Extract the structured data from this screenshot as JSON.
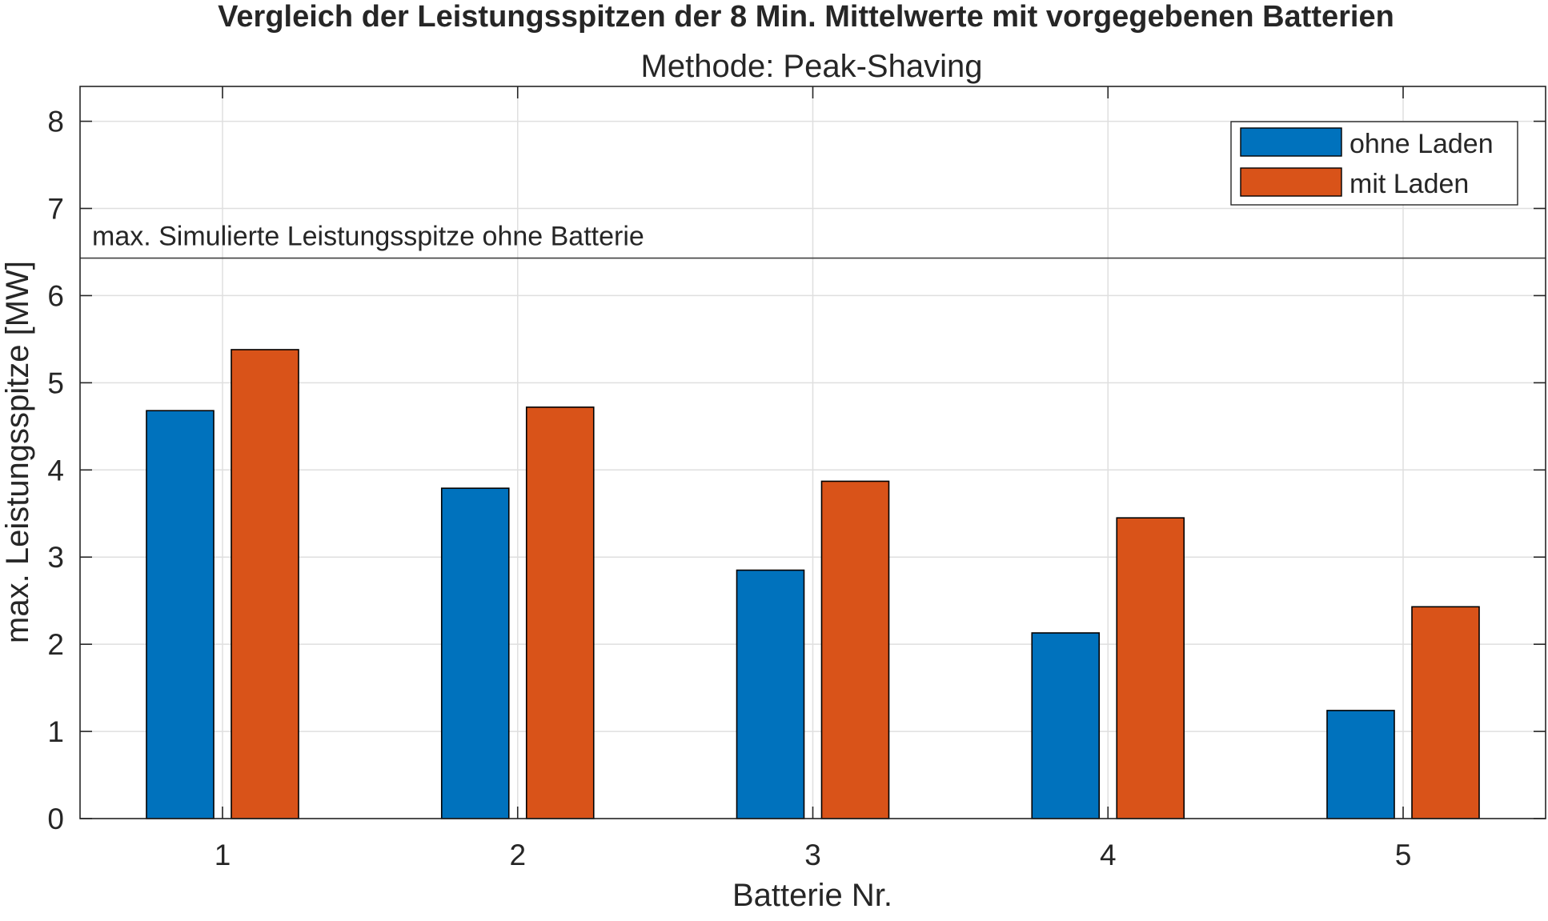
{
  "chart_data": {
    "type": "bar",
    "title": "Vergleich der Leistungsspitzen der 8 Min. Mittelwerte mit vorgegebenen Batterien",
    "subtitle": "Methode: Peak-Shaving",
    "xlabel": "Batterie Nr.",
    "ylabel": "max. Leistungsspitze [MW]",
    "categories": [
      "1",
      "2",
      "3",
      "4",
      "5"
    ],
    "ylim": [
      0,
      8.4
    ],
    "yticks": [
      0,
      1,
      2,
      3,
      4,
      5,
      6,
      7,
      8
    ],
    "grid": true,
    "legend_position": "top-right",
    "series": [
      {
        "name": "ohne Laden",
        "color": "#0072BD",
        "values": [
          4.68,
          3.79,
          2.85,
          2.13,
          1.24
        ]
      },
      {
        "name": "mit Laden",
        "color": "#D95319",
        "values": [
          5.38,
          4.72,
          3.87,
          3.45,
          2.43
        ]
      }
    ],
    "reference_line": {
      "value": 6.43,
      "label": "max. Simulierte Leistungsspitze ohne Batterie"
    }
  }
}
